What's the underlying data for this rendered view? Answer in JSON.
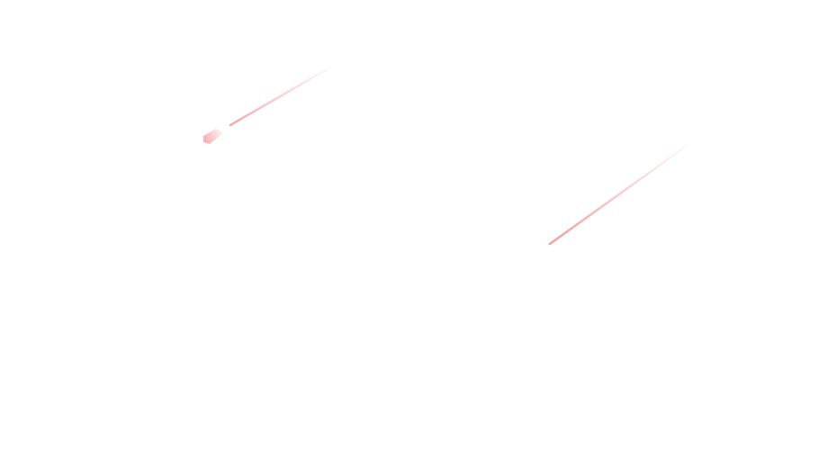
{
  "theme": {
    "background": "#ffffff",
    "streak_color": "#f08a8f"
  }
}
